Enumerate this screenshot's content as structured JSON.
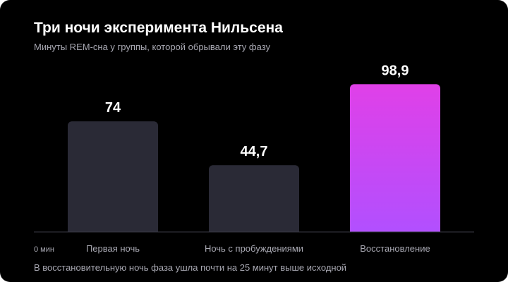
{
  "chart_data": {
    "type": "bar",
    "title": "Три ночи эксперимента Нильсена",
    "subtitle": "Минуты REM-сна у группы, которой обрывали эту фазу",
    "categories": [
      "Первая ночь",
      "Ночь с пробуждениями",
      "Восстановление"
    ],
    "values": [
      74,
      44.7,
      98.9
    ],
    "value_labels": [
      "74",
      "44,7",
      "98,9"
    ],
    "baseline_label": "0 мин",
    "ylim": [
      0,
      100
    ],
    "grid": false,
    "legend": "none",
    "footnote": "В восстановительную ночь фаза ушла почти на 25 минут выше исходной",
    "colors": {
      "background": "#000000",
      "bar_default": "#2a2a36",
      "bar_highlight_top": "#e040e8",
      "bar_highlight_bottom": "#b050ff",
      "axis": "#3a3a44",
      "text_primary": "#ffffff",
      "text_secondary": "#a9a9b3"
    },
    "highlight_index": 2
  }
}
